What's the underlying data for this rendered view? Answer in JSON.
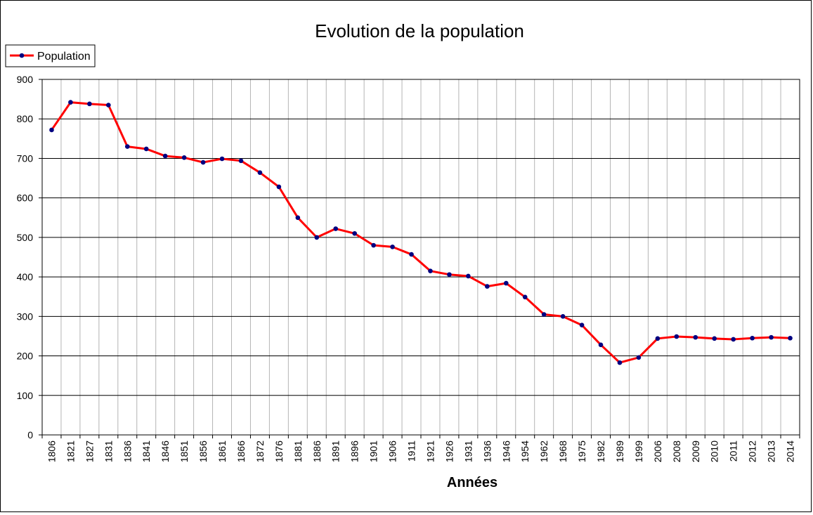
{
  "chart_data": {
    "type": "line",
    "title": "Evolution de la population",
    "xlabel": "Années",
    "ylabel": "",
    "ylim": [
      0,
      900
    ],
    "yticks": [
      0,
      100,
      200,
      300,
      400,
      500,
      600,
      700,
      800,
      900
    ],
    "grid": true,
    "legend_position": "top-left",
    "categories": [
      "1806",
      "1821",
      "1827",
      "1831",
      "1836",
      "1841",
      "1846",
      "1851",
      "1856",
      "1861",
      "1866",
      "1872",
      "1876",
      "1881",
      "1886",
      "1891",
      "1896",
      "1901",
      "1906",
      "1911",
      "1921",
      "1926",
      "1931",
      "1936",
      "1946",
      "1954",
      "1962",
      "1968",
      "1975",
      "1982",
      "1989",
      "1999",
      "2006",
      "2008",
      "2009",
      "2010",
      "2011",
      "2012",
      "2013",
      "2014"
    ],
    "series": [
      {
        "name": "Population",
        "color": "#ff0000",
        "marker_color": "#000080",
        "values": [
          772,
          842,
          838,
          835,
          730,
          724,
          706,
          702,
          690,
          699,
          694,
          664,
          628,
          550,
          500,
          522,
          510,
          480,
          476,
          457,
          415,
          406,
          402,
          376,
          384,
          349,
          305,
          300,
          278,
          228,
          183,
          196,
          244,
          249,
          247,
          244,
          242,
          245,
          247,
          245
        ]
      }
    ]
  }
}
